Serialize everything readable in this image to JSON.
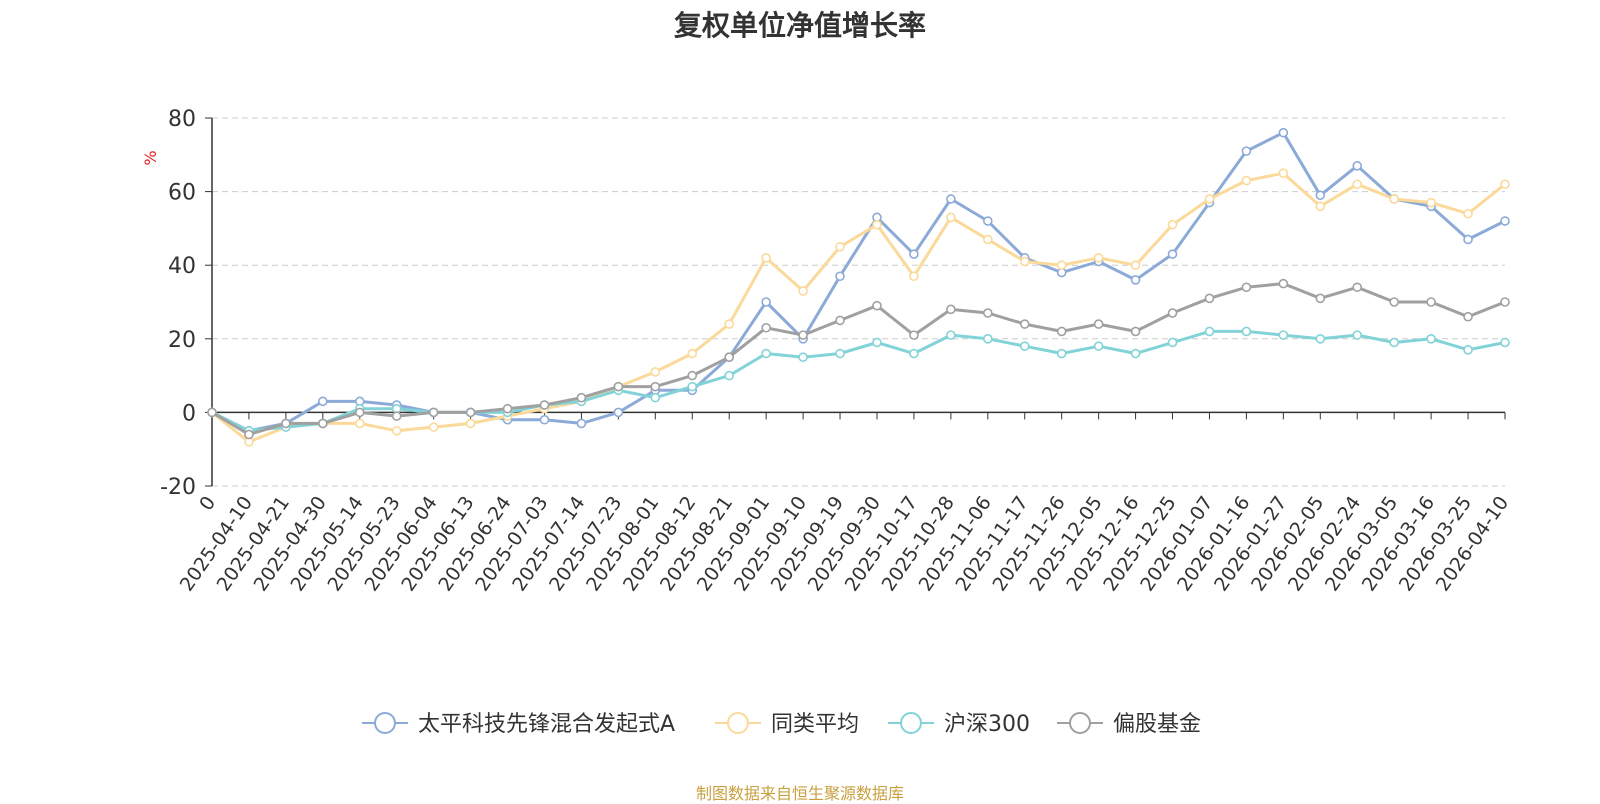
{
  "chart_data": {
    "type": "line",
    "title": "复权单位净值增长率",
    "ylabel": "%",
    "xlabel": "",
    "ylim": [
      -20,
      80
    ],
    "yticks": [
      -20,
      0,
      20,
      40,
      60,
      80
    ],
    "grid": "horizontal dashed",
    "legend_position": "bottom-center",
    "categories": [
      "0",
      "2025-04-10",
      "2025-04-21",
      "2025-04-30",
      "2025-05-14",
      "2025-05-23",
      "2025-06-04",
      "2025-06-13",
      "2025-06-24",
      "2025-07-03",
      "2025-07-14",
      "2025-07-23",
      "2025-08-01",
      "2025-08-12",
      "2025-08-21",
      "2025-09-01",
      "2025-09-10",
      "2025-09-19",
      "2025-09-30",
      "2025-10-17",
      "2025-10-28",
      "2025-11-06",
      "2025-11-17",
      "2025-11-26",
      "2025-12-05",
      "2025-12-16",
      "2025-12-25",
      "2026-01-07",
      "2026-01-16",
      "2026-01-27",
      "2026-02-05",
      "2026-02-24",
      "2026-03-05",
      "2026-03-16",
      "2026-03-25",
      "2026-04-10"
    ],
    "series": [
      {
        "name": "太平科技先锋混合发起式A",
        "color": "#8caad8",
        "values": [
          0,
          -5,
          -3,
          3,
          3,
          2,
          0,
          0,
          -2,
          -2,
          -3,
          0,
          6,
          6,
          15,
          30,
          20,
          37,
          53,
          43,
          58,
          52,
          42,
          38,
          41,
          36,
          43,
          57,
          71,
          76,
          59,
          67,
          58,
          56,
          47,
          52
        ]
      },
      {
        "name": "同类平均",
        "color": "#fbd99a",
        "values": [
          0,
          -8,
          -4,
          -3,
          -3,
          -5,
          -4,
          -3,
          -1,
          1,
          3,
          7,
          11,
          16,
          24,
          42,
          33,
          45,
          51,
          37,
          53,
          47,
          41,
          40,
          42,
          40,
          51,
          58,
          63,
          65,
          56,
          62,
          58,
          57,
          54,
          62
        ]
      },
      {
        "name": "沪深300",
        "color": "#82d3d7",
        "values": [
          0,
          -5,
          -4,
          -3,
          1,
          1,
          0,
          0,
          0,
          2,
          3,
          6,
          4,
          7,
          10,
          16,
          15,
          16,
          19,
          16,
          21,
          20,
          18,
          16,
          18,
          16,
          19,
          22,
          22,
          21,
          20,
          21,
          19,
          20,
          17,
          19
        ]
      },
      {
        "name": "偏股基金",
        "color": "#a0a0a0",
        "values": [
          0,
          -6,
          -3,
          -3,
          0,
          -1,
          0,
          0,
          1,
          2,
          4,
          7,
          7,
          10,
          15,
          23,
          21,
          25,
          29,
          21,
          28,
          27,
          24,
          22,
          24,
          22,
          27,
          31,
          34,
          35,
          31,
          34,
          30,
          30,
          26,
          30
        ]
      }
    ]
  },
  "source_note": "制图数据来自恒生聚源数据库"
}
